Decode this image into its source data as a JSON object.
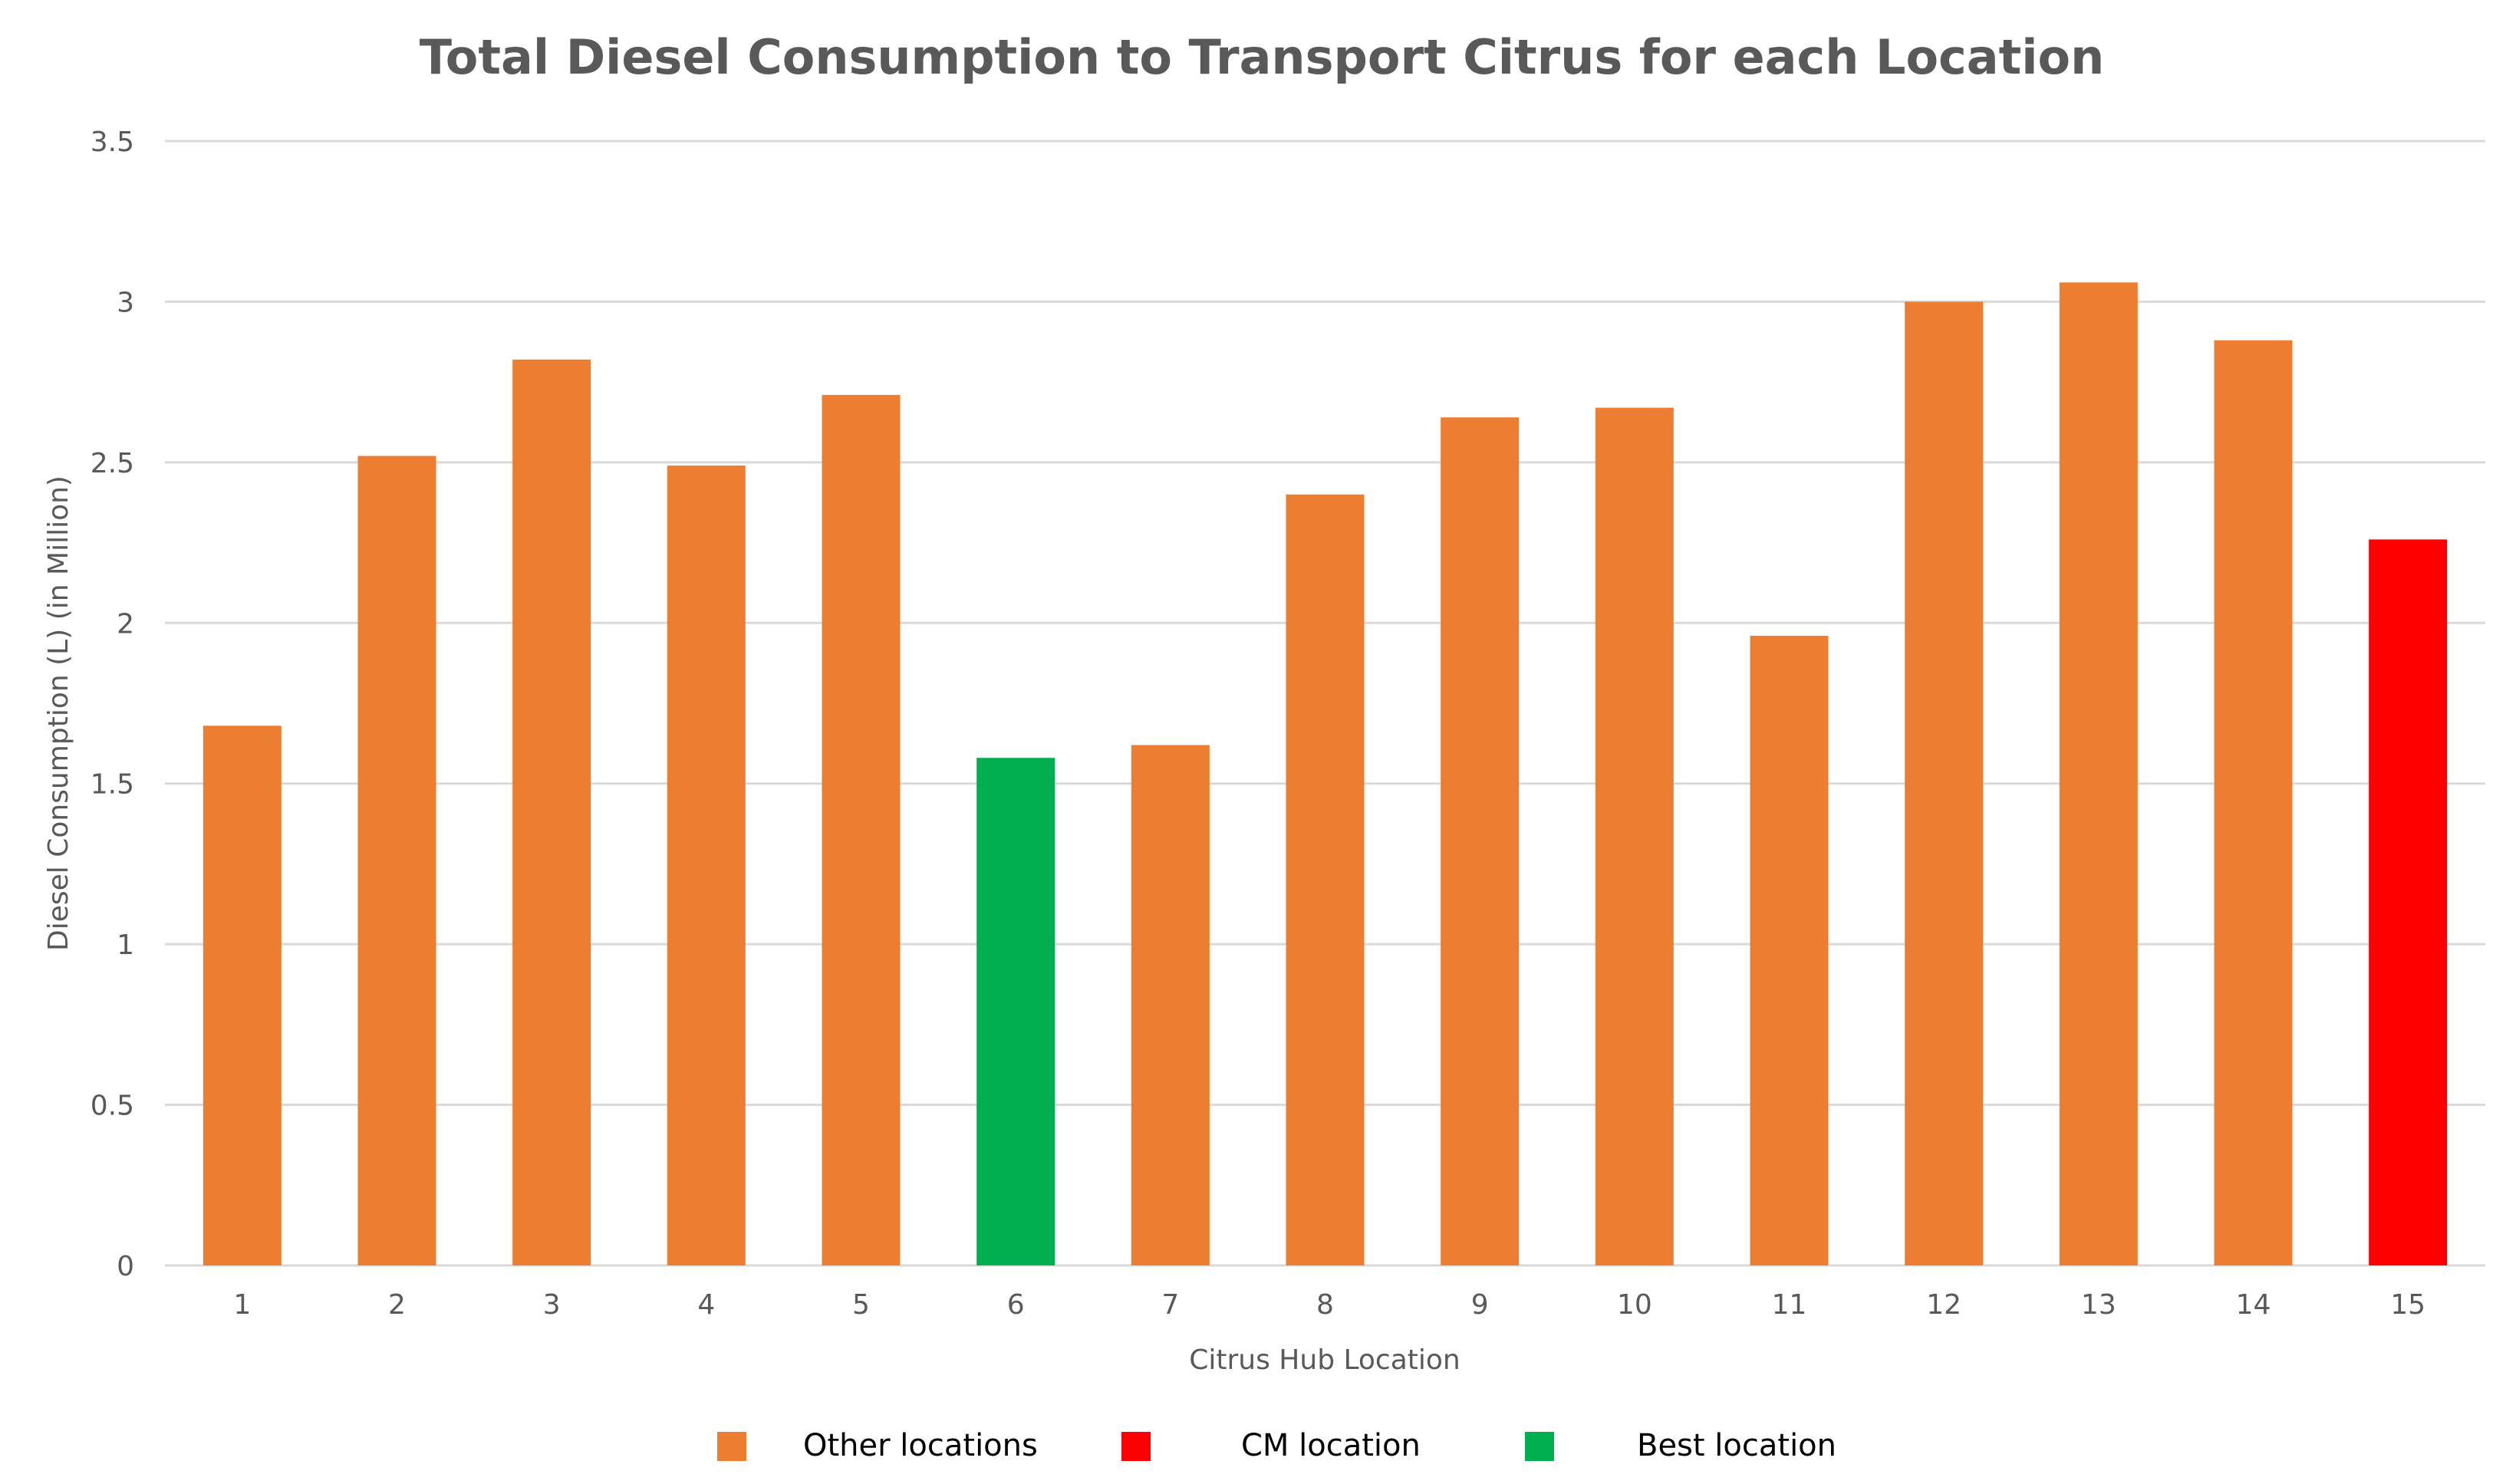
{
  "chart_data": {
    "type": "bar",
    "title": "Total Diesel Consumption to Transport Citrus for each Location",
    "xlabel": "Citrus Hub Location",
    "ylabel": "Diesel Consumption  (L) (in Million)",
    "ylim": [
      0,
      3.5
    ],
    "yticks": [
      "0",
      "0.5",
      "1",
      "1.5",
      "2",
      "2.5",
      "3",
      "3.5"
    ],
    "grid": true,
    "legend_position": "bottom",
    "categories": [
      "1",
      "2",
      "3",
      "4",
      "5",
      "6",
      "7",
      "8",
      "9",
      "10",
      "11",
      "12",
      "13",
      "14",
      "15"
    ],
    "values": [
      1.68,
      2.52,
      2.82,
      2.49,
      2.71,
      1.58,
      1.62,
      2.4,
      2.64,
      2.67,
      1.96,
      3.0,
      3.06,
      2.88,
      2.26
    ],
    "groups": [
      "other",
      "other",
      "other",
      "other",
      "other",
      "best",
      "other",
      "other",
      "other",
      "other",
      "other",
      "other",
      "other",
      "other",
      "cm"
    ],
    "legend": [
      {
        "key": "other",
        "label": "Other locations",
        "color": "#ED7D31"
      },
      {
        "key": "cm",
        "label": "CM location",
        "color": "#FF0000"
      },
      {
        "key": "best",
        "label": "Best location",
        "color": "#00B050"
      }
    ]
  }
}
